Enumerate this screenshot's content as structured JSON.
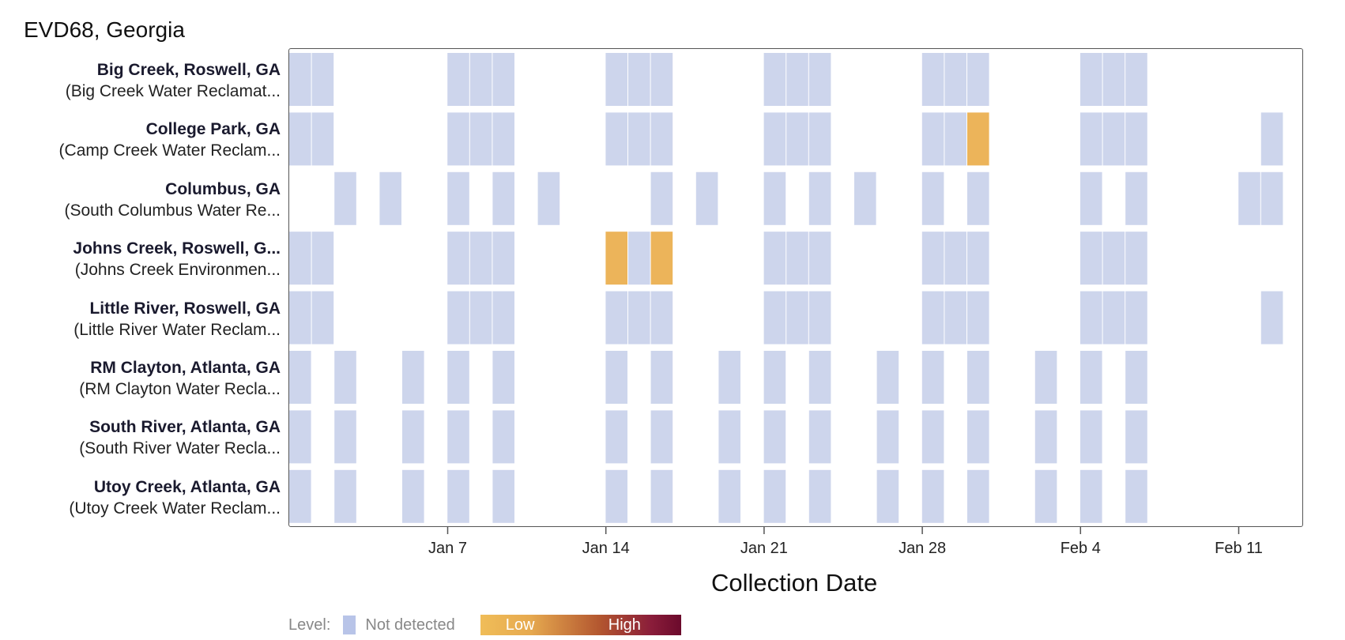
{
  "chart_data": {
    "type": "heatmap",
    "title": "EVD68, Georgia",
    "xlabel": "Collection Date",
    "x_range": [
      "Dec 31",
      "Feb 14"
    ],
    "x_ticks": [
      "Jan 7",
      "Jan 14",
      "Jan 21",
      "Jan 28",
      "Feb 4",
      "Feb 11"
    ],
    "legend": {
      "label": "Level:",
      "not_detected": "Not detected",
      "low": "Low",
      "high": "High"
    },
    "colors": {
      "not_detected": "#cdd5ec",
      "low": "#ecb45a",
      "high": "#6b0a2c"
    },
    "rows": [
      {
        "site": "Big Creek, Roswell, GA",
        "plant": "(Big Creek Water Reclamat...",
        "samples": [
          {
            "date": "Dec 31",
            "level": "not_detected"
          },
          {
            "date": "Jan 1",
            "level": "not_detected"
          },
          {
            "date": "Jan 7",
            "level": "not_detected"
          },
          {
            "date": "Jan 8",
            "level": "not_detected"
          },
          {
            "date": "Jan 9",
            "level": "not_detected"
          },
          {
            "date": "Jan 14",
            "level": "not_detected"
          },
          {
            "date": "Jan 15",
            "level": "not_detected"
          },
          {
            "date": "Jan 16",
            "level": "not_detected"
          },
          {
            "date": "Jan 21",
            "level": "not_detected"
          },
          {
            "date": "Jan 22",
            "level": "not_detected"
          },
          {
            "date": "Jan 23",
            "level": "not_detected"
          },
          {
            "date": "Jan 28",
            "level": "not_detected"
          },
          {
            "date": "Jan 29",
            "level": "not_detected"
          },
          {
            "date": "Jan 30",
            "level": "not_detected"
          },
          {
            "date": "Feb 4",
            "level": "not_detected"
          },
          {
            "date": "Feb 5",
            "level": "not_detected"
          },
          {
            "date": "Feb 6",
            "level": "not_detected"
          }
        ]
      },
      {
        "site": "College Park, GA",
        "plant": "(Camp Creek Water Reclam...",
        "samples": [
          {
            "date": "Dec 31",
            "level": "not_detected"
          },
          {
            "date": "Jan 1",
            "level": "not_detected"
          },
          {
            "date": "Jan 7",
            "level": "not_detected"
          },
          {
            "date": "Jan 8",
            "level": "not_detected"
          },
          {
            "date": "Jan 9",
            "level": "not_detected"
          },
          {
            "date": "Jan 14",
            "level": "not_detected"
          },
          {
            "date": "Jan 15",
            "level": "not_detected"
          },
          {
            "date": "Jan 16",
            "level": "not_detected"
          },
          {
            "date": "Jan 21",
            "level": "not_detected"
          },
          {
            "date": "Jan 22",
            "level": "not_detected"
          },
          {
            "date": "Jan 23",
            "level": "not_detected"
          },
          {
            "date": "Jan 28",
            "level": "not_detected"
          },
          {
            "date": "Jan 29",
            "level": "not_detected"
          },
          {
            "date": "Jan 30",
            "level": "low"
          },
          {
            "date": "Feb 4",
            "level": "not_detected"
          },
          {
            "date": "Feb 5",
            "level": "not_detected"
          },
          {
            "date": "Feb 6",
            "level": "not_detected"
          },
          {
            "date": "Feb 12",
            "level": "not_detected"
          }
        ]
      },
      {
        "site": "Columbus, GA",
        "plant": "(South Columbus Water Re...",
        "samples": [
          {
            "date": "Jan 2",
            "level": "not_detected"
          },
          {
            "date": "Jan 4",
            "level": "not_detected"
          },
          {
            "date": "Jan 7",
            "level": "not_detected"
          },
          {
            "date": "Jan 9",
            "level": "not_detected"
          },
          {
            "date": "Jan 11",
            "level": "not_detected"
          },
          {
            "date": "Jan 16",
            "level": "not_detected"
          },
          {
            "date": "Jan 18",
            "level": "not_detected"
          },
          {
            "date": "Jan 21",
            "level": "not_detected"
          },
          {
            "date": "Jan 23",
            "level": "not_detected"
          },
          {
            "date": "Jan 25",
            "level": "not_detected"
          },
          {
            "date": "Jan 28",
            "level": "not_detected"
          },
          {
            "date": "Jan 30",
            "level": "not_detected"
          },
          {
            "date": "Feb 4",
            "level": "not_detected"
          },
          {
            "date": "Feb 6",
            "level": "not_detected"
          },
          {
            "date": "Feb 11",
            "level": "not_detected"
          },
          {
            "date": "Feb 12",
            "level": "not_detected"
          }
        ]
      },
      {
        "site": "Johns Creek, Roswell, G...",
        "plant": "(Johns Creek Environmen...",
        "samples": [
          {
            "date": "Dec 31",
            "level": "not_detected"
          },
          {
            "date": "Jan 1",
            "level": "not_detected"
          },
          {
            "date": "Jan 7",
            "level": "not_detected"
          },
          {
            "date": "Jan 8",
            "level": "not_detected"
          },
          {
            "date": "Jan 9",
            "level": "not_detected"
          },
          {
            "date": "Jan 14",
            "level": "low"
          },
          {
            "date": "Jan 15",
            "level": "not_detected"
          },
          {
            "date": "Jan 16",
            "level": "low"
          },
          {
            "date": "Jan 21",
            "level": "not_detected"
          },
          {
            "date": "Jan 22",
            "level": "not_detected"
          },
          {
            "date": "Jan 23",
            "level": "not_detected"
          },
          {
            "date": "Jan 28",
            "level": "not_detected"
          },
          {
            "date": "Jan 29",
            "level": "not_detected"
          },
          {
            "date": "Jan 30",
            "level": "not_detected"
          },
          {
            "date": "Feb 4",
            "level": "not_detected"
          },
          {
            "date": "Feb 5",
            "level": "not_detected"
          },
          {
            "date": "Feb 6",
            "level": "not_detected"
          }
        ]
      },
      {
        "site": "Little River, Roswell, GA",
        "plant": "(Little River Water Reclam...",
        "samples": [
          {
            "date": "Dec 31",
            "level": "not_detected"
          },
          {
            "date": "Jan 1",
            "level": "not_detected"
          },
          {
            "date": "Jan 7",
            "level": "not_detected"
          },
          {
            "date": "Jan 8",
            "level": "not_detected"
          },
          {
            "date": "Jan 9",
            "level": "not_detected"
          },
          {
            "date": "Jan 14",
            "level": "not_detected"
          },
          {
            "date": "Jan 15",
            "level": "not_detected"
          },
          {
            "date": "Jan 16",
            "level": "not_detected"
          },
          {
            "date": "Jan 21",
            "level": "not_detected"
          },
          {
            "date": "Jan 22",
            "level": "not_detected"
          },
          {
            "date": "Jan 23",
            "level": "not_detected"
          },
          {
            "date": "Jan 28",
            "level": "not_detected"
          },
          {
            "date": "Jan 29",
            "level": "not_detected"
          },
          {
            "date": "Jan 30",
            "level": "not_detected"
          },
          {
            "date": "Feb 4",
            "level": "not_detected"
          },
          {
            "date": "Feb 5",
            "level": "not_detected"
          },
          {
            "date": "Feb 6",
            "level": "not_detected"
          },
          {
            "date": "Feb 12",
            "level": "not_detected"
          }
        ]
      },
      {
        "site": "RM Clayton, Atlanta, GA",
        "plant": "(RM Clayton Water Recla...",
        "samples": [
          {
            "date": "Dec 31",
            "level": "not_detected"
          },
          {
            "date": "Jan 2",
            "level": "not_detected"
          },
          {
            "date": "Jan 5",
            "level": "not_detected"
          },
          {
            "date": "Jan 7",
            "level": "not_detected"
          },
          {
            "date": "Jan 9",
            "level": "not_detected"
          },
          {
            "date": "Jan 14",
            "level": "not_detected"
          },
          {
            "date": "Jan 16",
            "level": "not_detected"
          },
          {
            "date": "Jan 19",
            "level": "not_detected"
          },
          {
            "date": "Jan 21",
            "level": "not_detected"
          },
          {
            "date": "Jan 23",
            "level": "not_detected"
          },
          {
            "date": "Jan 26",
            "level": "not_detected"
          },
          {
            "date": "Jan 28",
            "level": "not_detected"
          },
          {
            "date": "Jan 30",
            "level": "not_detected"
          },
          {
            "date": "Feb 2",
            "level": "not_detected"
          },
          {
            "date": "Feb 4",
            "level": "not_detected"
          },
          {
            "date": "Feb 6",
            "level": "not_detected"
          }
        ]
      },
      {
        "site": "South River, Atlanta, GA",
        "plant": "(South River Water Recla...",
        "samples": [
          {
            "date": "Dec 31",
            "level": "not_detected"
          },
          {
            "date": "Jan 2",
            "level": "not_detected"
          },
          {
            "date": "Jan 5",
            "level": "not_detected"
          },
          {
            "date": "Jan 7",
            "level": "not_detected"
          },
          {
            "date": "Jan 9",
            "level": "not_detected"
          },
          {
            "date": "Jan 14",
            "level": "not_detected"
          },
          {
            "date": "Jan 16",
            "level": "not_detected"
          },
          {
            "date": "Jan 19",
            "level": "not_detected"
          },
          {
            "date": "Jan 21",
            "level": "not_detected"
          },
          {
            "date": "Jan 23",
            "level": "not_detected"
          },
          {
            "date": "Jan 26",
            "level": "not_detected"
          },
          {
            "date": "Jan 28",
            "level": "not_detected"
          },
          {
            "date": "Jan 30",
            "level": "not_detected"
          },
          {
            "date": "Feb 2",
            "level": "not_detected"
          },
          {
            "date": "Feb 4",
            "level": "not_detected"
          },
          {
            "date": "Feb 6",
            "level": "not_detected"
          }
        ]
      },
      {
        "site": "Utoy Creek, Atlanta, GA",
        "plant": "(Utoy Creek Water Reclam...",
        "samples": [
          {
            "date": "Dec 31",
            "level": "not_detected"
          },
          {
            "date": "Jan 2",
            "level": "not_detected"
          },
          {
            "date": "Jan 5",
            "level": "not_detected"
          },
          {
            "date": "Jan 7",
            "level": "not_detected"
          },
          {
            "date": "Jan 9",
            "level": "not_detected"
          },
          {
            "date": "Jan 14",
            "level": "not_detected"
          },
          {
            "date": "Jan 16",
            "level": "not_detected"
          },
          {
            "date": "Jan 19",
            "level": "not_detected"
          },
          {
            "date": "Jan 21",
            "level": "not_detected"
          },
          {
            "date": "Jan 23",
            "level": "not_detected"
          },
          {
            "date": "Jan 26",
            "level": "not_detected"
          },
          {
            "date": "Jan 28",
            "level": "not_detected"
          },
          {
            "date": "Jan 30",
            "level": "not_detected"
          },
          {
            "date": "Feb 2",
            "level": "not_detected"
          },
          {
            "date": "Feb 4",
            "level": "not_detected"
          },
          {
            "date": "Feb 6",
            "level": "not_detected"
          }
        ]
      }
    ]
  }
}
